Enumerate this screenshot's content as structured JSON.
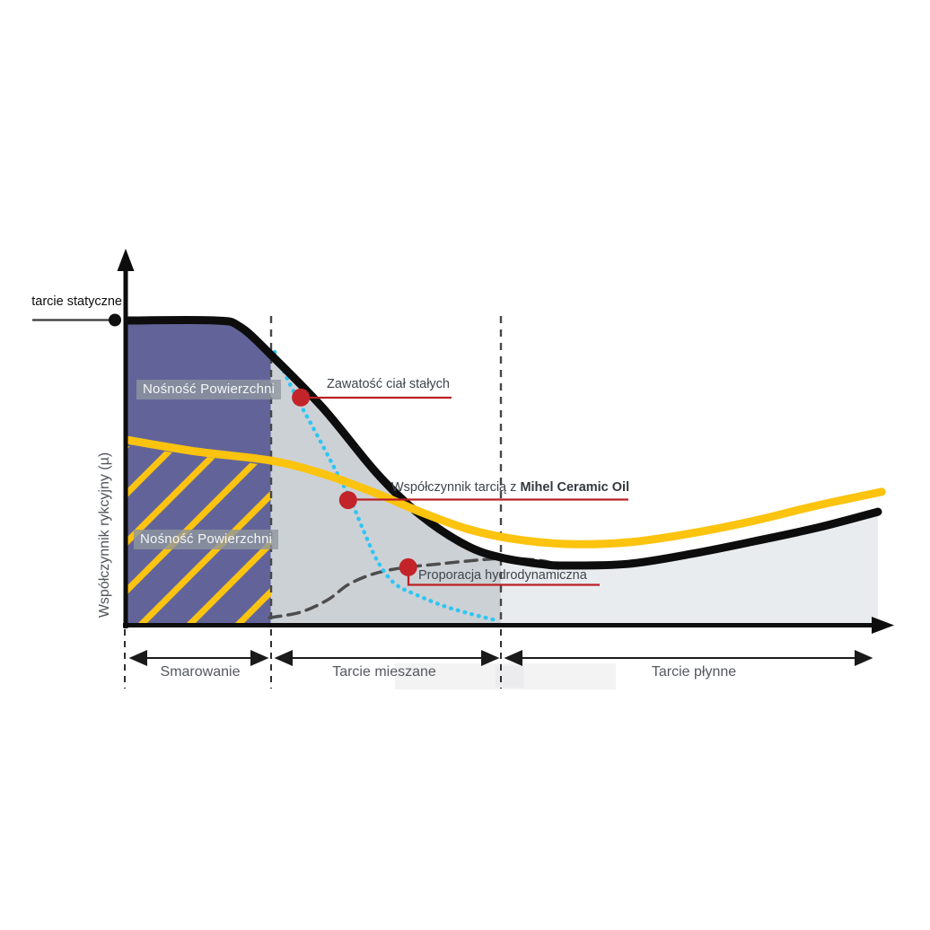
{
  "annotations": {
    "static_friction": "tarcie statyczne",
    "surface_load_upper": "Nośność Powierzchni",
    "surface_load_lower": "Nośność Powierzchni",
    "solids_content": "Zawatość ciał stałych",
    "oil_friction_prefix": "Współczynnik tarcią z ",
    "oil_friction_bold": "Mihel Ceramic Oil",
    "hydrodynamic": "Proporacja hydrodynamiczna"
  },
  "axes": {
    "y_label": "Współczynnik rykcyjny (µ)"
  },
  "zones": [
    {
      "label": "Smarowanie"
    },
    {
      "label": "Tarcie mieszane"
    },
    {
      "label": "Tarcie płynne"
    }
  ],
  "colors": {
    "region_purple": "#626499",
    "region_gray": "#ccd1d6",
    "region_light": "#e9ecef",
    "curve_black": "#0d0d0d",
    "curve_yellow": "#fcc30f",
    "curve_blue": "#2ec6f2",
    "curve_dash_gray": "#4d4d4d",
    "annotation_red_dot": "#c2242a",
    "annotation_red_line": "#bb2025"
  },
  "chart_data": {
    "type": "line",
    "x_range_relative": [
      0,
      100
    ],
    "ylim": [
      0,
      1
    ],
    "grid": false,
    "static_friction_level": 0.919,
    "zone_boundaries_t": [
      0,
      19.1,
      49.8,
      100
    ],
    "region_fills": [
      "#626499",
      "#ccd1d6",
      "#e9ecef"
    ],
    "marker_color": "#c2242a",
    "series": [
      {
        "name": "proporcja-hydrodynamiczna",
        "color": "#4d4d4d",
        "style": "dashed",
        "width": 3.5,
        "points": [
          [
            18.9,
            0.024
          ],
          [
            23.1,
            0.041
          ],
          [
            26.7,
            0.078
          ],
          [
            29.3,
            0.122
          ],
          [
            32.1,
            0.151
          ],
          [
            35.0,
            0.168
          ],
          [
            38.0,
            0.178
          ],
          [
            41.6,
            0.186
          ],
          [
            46.4,
            0.197
          ],
          [
            50.6,
            0.203
          ],
          [
            54.8,
            0.197
          ],
          [
            56.6,
            0.189
          ]
        ]
      },
      {
        "name": "zawartosc-cial-stalych",
        "color": "#2ec6f2",
        "style": "dotted",
        "width": 4.5,
        "points": [
          [
            19.6,
            0.824
          ],
          [
            22.5,
            0.689
          ],
          [
            25.1,
            0.581
          ],
          [
            27.5,
            0.478
          ],
          [
            29.7,
            0.381
          ],
          [
            31.5,
            0.284
          ],
          [
            33.3,
            0.195
          ],
          [
            35.6,
            0.127
          ],
          [
            38.6,
            0.092
          ],
          [
            42.2,
            0.059
          ],
          [
            45.8,
            0.035
          ],
          [
            49.2,
            0.016
          ]
        ]
      },
      {
        "name": "wspolczynnik-tarcia",
        "color": "#0d0d0d",
        "style": "solid",
        "width": 9,
        "points": [
          [
            0,
            0.919
          ],
          [
            11.7,
            0.919
          ],
          [
            15,
            0.9
          ],
          [
            19.1,
            0.816
          ],
          [
            26.1,
            0.654
          ],
          [
            33.3,
            0.457
          ],
          [
            39.2,
            0.33
          ],
          [
            45.2,
            0.241
          ],
          [
            49.8,
            0.205
          ],
          [
            55,
            0.186
          ],
          [
            58.4,
            0.181
          ],
          [
            66.7,
            0.186
          ],
          [
            75.1,
            0.216
          ],
          [
            83.5,
            0.254
          ],
          [
            91.9,
            0.295
          ],
          [
            100,
            0.343
          ]
        ]
      },
      {
        "name": "wspolczynnik-tarcia-mihel-ceramic-oil",
        "color": "#fcc30f",
        "style": "solid",
        "width": 9,
        "points": [
          [
            0,
            0.559
          ],
          [
            9.3,
            0.524
          ],
          [
            19.1,
            0.497
          ],
          [
            26.1,
            0.457
          ],
          [
            33.3,
            0.397
          ],
          [
            39.2,
            0.341
          ],
          [
            45.2,
            0.292
          ],
          [
            51.2,
            0.262
          ],
          [
            58.4,
            0.246
          ],
          [
            66.7,
            0.251
          ],
          [
            75.1,
            0.278
          ],
          [
            83.5,
            0.316
          ],
          [
            91.9,
            0.362
          ],
          [
            100.5,
            0.403
          ]
        ]
      }
    ],
    "markers": [
      {
        "t": 23.1,
        "mu": 0.687,
        "label": "Zawatość ciał stałych"
      },
      {
        "t": 29.4,
        "mu": 0.378,
        "label": "Współczynnik tarcią z Mihel Ceramic Oil"
      },
      {
        "t": 37.4,
        "mu": 0.176,
        "label": "Proporacja hydrodynamiczna"
      }
    ]
  }
}
